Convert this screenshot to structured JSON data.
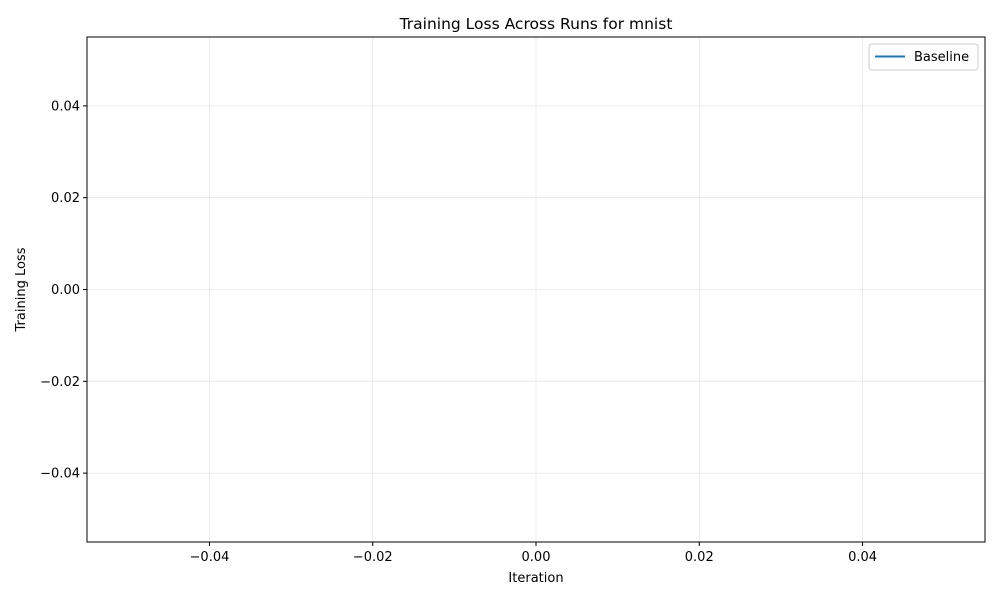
{
  "chart_data": {
    "type": "line",
    "title": "Training Loss Across Runs for mnist",
    "xlabel": "Iteration",
    "ylabel": "Training Loss",
    "xlim": [
      -0.055,
      0.055
    ],
    "ylim": [
      -0.055,
      0.055
    ],
    "x_ticks": [
      -0.04,
      -0.02,
      0.0,
      0.02,
      0.04
    ],
    "x_tick_labels": [
      "−0.04",
      "−0.02",
      "0.00",
      "0.02",
      "0.04"
    ],
    "y_ticks": [
      -0.04,
      -0.02,
      0.0,
      0.02,
      0.04
    ],
    "y_tick_labels": [
      "−0.04",
      "−0.02",
      "0.00",
      "0.02",
      "0.04"
    ],
    "grid": true,
    "legend_position": "top-right",
    "series": [
      {
        "name": "Baseline",
        "color": "#1f77b4",
        "x": [],
        "y": []
      }
    ]
  }
}
